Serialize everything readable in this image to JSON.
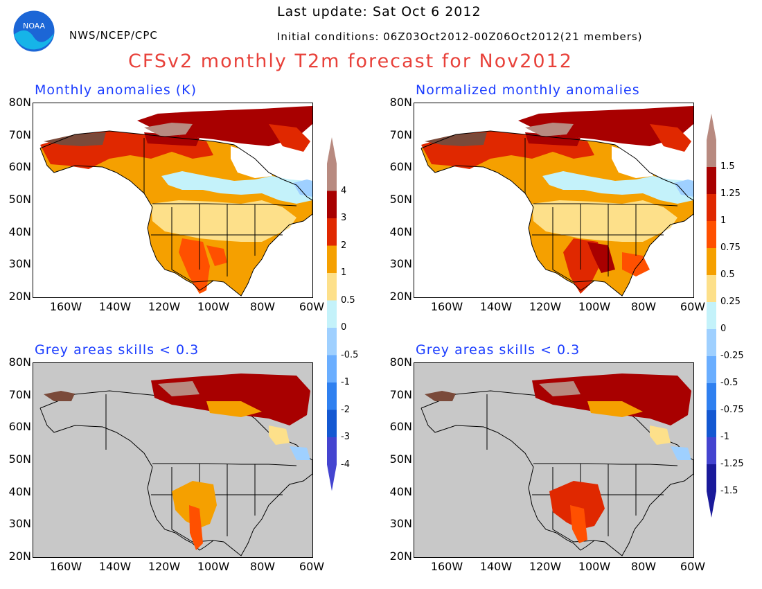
{
  "header": {
    "last_update": "Last update: Sat Oct 6 2012",
    "initial_conditions": "Initial conditions: 06Z03Oct2012-00Z06Oct2012(21 members)",
    "agency": "NWS/NCEP/CPC",
    "logo_text": "NOAA",
    "title": "CFSv2 monthly T2m forecast for Nov2012"
  },
  "panels": {
    "top_left": {
      "title": "Monthly anomalies (K)"
    },
    "top_right": {
      "title": "Normalized monthly anomalies"
    },
    "bottom_left": {
      "title": "Grey areas skills < 0.3"
    },
    "bottom_right": {
      "title": "Grey areas skills < 0.3"
    }
  },
  "axes": {
    "lat_labels": [
      "80N",
      "70N",
      "60N",
      "50N",
      "40N",
      "30N",
      "20N"
    ],
    "lon_labels": [
      "160W",
      "140W",
      "120W",
      "100W",
      "80W",
      "60W"
    ]
  },
  "colorbar_left": {
    "labels": [
      "4",
      "3",
      "2",
      "1",
      "0.5",
      "0",
      "-0.5",
      "-1",
      "-2",
      "-3",
      "-4"
    ]
  },
  "colorbar_right": {
    "labels": [
      "1.5",
      "1.25",
      "1",
      "0.75",
      "0.5",
      "0.25",
      "0",
      "-0.25",
      "-0.5",
      "-0.75",
      "-1",
      "-1.25",
      "-1.5"
    ]
  },
  "colors": {
    "c_pos6": "#7a4a3a",
    "c_pos5": "#b88a80",
    "c_pos4": "#a80000",
    "c_pos3": "#e02800",
    "c_pos2": "#ff5000",
    "c_pos1": "#f5a000",
    "c_pos0": "#fde08a",
    "c_neg0": "#c4f2fa",
    "c_neg1": "#9fd0ff",
    "c_neg2": "#6aaeff",
    "c_neg3": "#2f80f0",
    "c_neg4": "#1458d2",
    "c_neg5": "#4444d0",
    "c_neg6": "#1a1a9a",
    "grey": "#c8c8c8",
    "title_red": "#e8413a",
    "panel_blue": "#1a3cff"
  }
}
